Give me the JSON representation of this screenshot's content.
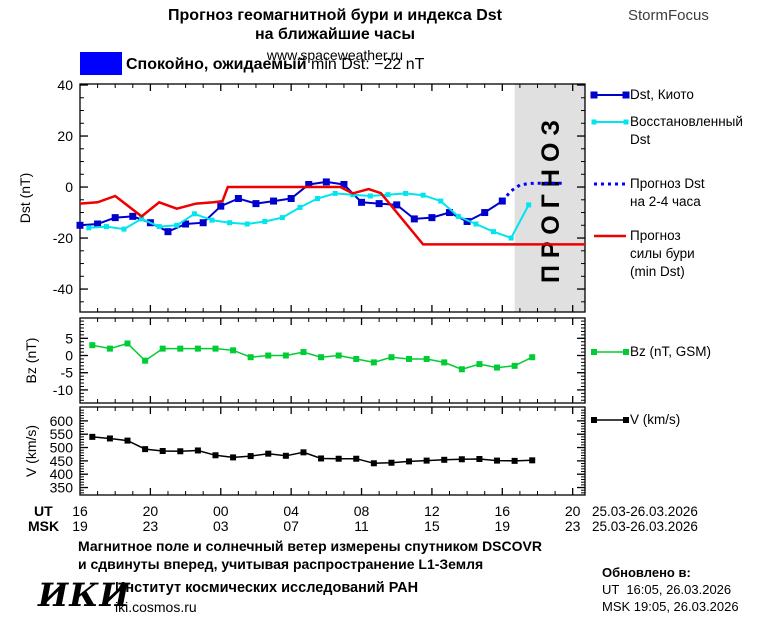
{
  "header": {
    "title_line1": "Прогноз геомагнитной бури и индекса Dst",
    "title_line2": "на ближайшие часы",
    "site": "www.spaceweather.ru",
    "brand": "StormFocus"
  },
  "status": {
    "label_ru": "Спокойно, ожидаемый",
    "label_en": "min Dst: −22 nT",
    "box_color": "#0000ff"
  },
  "chart_data": {
    "type": "line",
    "xaxis": {
      "row1_label": "UT",
      "row2_label": "MSK",
      "tick_hours": [
        0,
        4,
        8,
        12,
        16,
        20,
        24,
        28
      ],
      "row1_ticks": [
        "16",
        "20",
        "00",
        "04",
        "08",
        "12",
        "16",
        "20"
      ],
      "row2_ticks": [
        "19",
        "23",
        "03",
        "07",
        "11",
        "15",
        "19",
        "23"
      ],
      "row1_date": "25.03-26.03.2026",
      "row2_date": "25.03-26.03.2026",
      "xlim_hours": [
        0,
        28.7
      ],
      "minor_step_hours": 1
    },
    "forecast_band": {
      "start_hour": 24.7,
      "color": "#e0e0e0",
      "label": "ПРОГНОЗ",
      "label_color": "#c9c9c9"
    },
    "panels": [
      {
        "id": "dst",
        "ylabel": "Dst (nT)",
        "ylim": [
          -49,
          40.4
        ],
        "yticks": [
          40,
          20,
          0,
          -20,
          -40
        ],
        "yminor_step": 5,
        "series": [
          {
            "name": "dst-kyoto",
            "legend_lines": [
              "Dst, Киото"
            ],
            "color": "#0000cd",
            "marker": true,
            "marker_size": 7,
            "width": 2,
            "x": [
              0,
              1,
              2,
              3,
              4,
              5,
              6,
              7,
              8,
              9,
              10,
              11,
              12,
              13,
              14,
              15,
              16,
              17,
              18,
              19,
              20,
              21,
              22,
              23,
              24
            ],
            "y": [
              -15,
              -14.5,
              -12,
              -11.5,
              -14,
              -17.5,
              -14.5,
              -14,
              -7.5,
              -4.5,
              -6.5,
              -5.5,
              -4.5,
              1,
              2,
              1,
              -6,
              -6.5,
              -7,
              -12.5,
              -12,
              -10,
              -13.5,
              -10,
              -5.5
            ]
          },
          {
            "name": "dst-restored",
            "legend_lines": [
              "Восстановленный",
              "Dst"
            ],
            "color": "#00e5ee",
            "marker": true,
            "marker_size": 5,
            "width": 2,
            "x": [
              0.5,
              1.5,
              2.5,
              3.5,
              4.5,
              5.5,
              6.5,
              7.5,
              8.5,
              9.5,
              10.5,
              11.5,
              12.5,
              13.5,
              14.5,
              15.5,
              16.5,
              17.5,
              18.5,
              19.5,
              20.5,
              21.5,
              22.5,
              23.5,
              24.5,
              25.5
            ],
            "y": [
              -16,
              -15.5,
              -16.5,
              -12.5,
              -15.5,
              -15,
              -10.5,
              -13,
              -14,
              -14.5,
              -13.5,
              -12,
              -8,
              -4.5,
              -2.5,
              -3,
              -3.5,
              -3,
              -2.5,
              -3.2,
              -5.5,
              -11.5,
              -14.5,
              -17.5,
              -20,
              -7
            ]
          },
          {
            "name": "dst-forecast",
            "legend_lines": [
              "Прогноз Dst",
              "на 2-4 часа"
            ],
            "color": "#0000ff",
            "dotted": true,
            "width": 3,
            "x": [
              24,
              24.5,
              25,
              25.5,
              26,
              26.5,
              27,
              27.5
            ],
            "y": [
              -5.5,
              -1.5,
              0.8,
              1.4,
              1.5,
              1.5,
              1.5,
              1.5
            ]
          },
          {
            "name": "storm-strength-forecast",
            "legend_lines": [
              "Прогноз",
              "силы бури",
              "(min Dst)"
            ],
            "color": "#ee0000",
            "width": 2.5,
            "x": [
              0,
              1,
              2,
              3.5,
              4.5,
              5.5,
              6.6,
              7.6,
              8.1,
              8.4,
              14.8,
              15.5,
              16.4,
              17.1,
              19.5,
              28.7
            ],
            "y": [
              -6.5,
              -6,
              -3.5,
              -11.5,
              -6,
              -8.5,
              -6.5,
              -6,
              -5.5,
              0,
              0,
              -2.5,
              -0.8,
              -2.4,
              -22.5,
              -22.5
            ]
          }
        ]
      },
      {
        "id": "bz",
        "ylabel": "Bz (nT)",
        "ylim": [
          -13.8,
          10.9
        ],
        "yticks": [
          5,
          0,
          -5,
          -10
        ],
        "yminor_step": 1,
        "series": [
          {
            "name": "bz-gsm",
            "legend_lines": [
              "Bz (nT, GSM)"
            ],
            "color": "#00cc33",
            "marker": true,
            "marker_size": 6,
            "width": 1.5,
            "x": [
              0.7,
              1.7,
              2.7,
              3.7,
              4.7,
              5.7,
              6.7,
              7.7,
              8.7,
              9.7,
              10.7,
              11.7,
              12.7,
              13.7,
              14.7,
              15.7,
              16.7,
              17.7,
              18.7,
              19.7,
              20.7,
              21.7,
              22.7,
              23.7,
              24.7,
              25.7
            ],
            "y": [
              3,
              2,
              3.5,
              -1.5,
              2,
              2,
              2,
              2,
              1.5,
              -0.5,
              0,
              0,
              1,
              -0.5,
              0,
              -1,
              -2,
              -0.5,
              -1,
              -1,
              -2,
              -4,
              -2.5,
              -3.5,
              -3,
              -0.5
            ]
          }
        ]
      },
      {
        "id": "v",
        "ylabel": "V (km/s)",
        "ylim": [
          322,
          652
        ],
        "yticks": [
          600,
          550,
          500,
          450,
          400,
          350
        ],
        "yminor_step": 10,
        "series": [
          {
            "name": "solar-wind-speed",
            "legend_lines": [
              "V (km/s)"
            ],
            "color": "#000000",
            "marker": true,
            "marker_size": 6,
            "width": 1.5,
            "x": [
              0.7,
              1.7,
              2.7,
              3.7,
              4.7,
              5.7,
              6.7,
              7.7,
              8.7,
              9.7,
              10.7,
              11.7,
              12.7,
              13.7,
              14.7,
              15.7,
              16.7,
              17.7,
              18.7,
              19.7,
              20.7,
              21.7,
              22.7,
              23.7,
              24.7,
              25.7
            ],
            "y": [
              540,
              534,
              526,
              494,
              487,
              486,
              489,
              471,
              463,
              468,
              477,
              469,
              482,
              459,
              458,
              458,
              441,
              443,
              448,
              451,
              454,
              456,
              457,
              451,
              450,
              452
            ]
          }
        ]
      }
    ]
  },
  "footer": {
    "desc_line1": "Магнитное поле и солнечный ветер измерены спутником DSCOVR",
    "desc_line2": "и сдвинуты вперед, учитывая распространение L1-Земля",
    "logo": "ИКИ",
    "institute": "Институт космических исследований РАН",
    "institute_site": "iki.cosmos.ru",
    "updated_label": "Обновлено в:",
    "updated_ut": "UT  16:05, 26.03.2026",
    "updated_msk": "MSK 19:05, 26.03.2026"
  }
}
